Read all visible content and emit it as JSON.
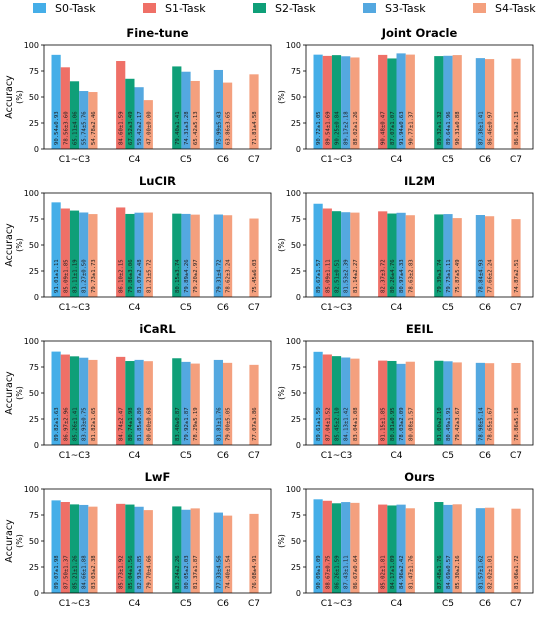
{
  "colors": [
    "#45aee8",
    "#ef7067",
    "#0f9f78",
    "#54a8e0",
    "#f4a07e"
  ],
  "legend": [
    "S0-Task",
    "S1-Task",
    "S2-Task",
    "S3-Task",
    "S4-Task"
  ],
  "ylabel": "Accuracy",
  "ylabel_unit": "(%)",
  "categories": [
    "C1~C3",
    "C4",
    "C5",
    "C6",
    "C7"
  ],
  "y_ticks": [
    "0",
    "25",
    "50",
    "75",
    "100"
  ],
  "chart_data": [
    {
      "type": "bar",
      "title": "Fine-tune",
      "ylim": [
        0,
        100
      ],
      "bars": [
        {
          "cat": "C1~C3",
          "series": "S0-Task",
          "value": 90.54,
          "label": "90.54±0.93"
        },
        {
          "cat": "C1~C3",
          "series": "S1-Task",
          "value": 78.56,
          "label": "78.56±3.60"
        },
        {
          "cat": "C1~C3",
          "series": "S2-Task",
          "value": 65.11,
          "label": "65.11±4.06"
        },
        {
          "cat": "C1~C3",
          "series": "S3-Task",
          "value": 55.74,
          "label": "55.74±5.76"
        },
        {
          "cat": "C1~C3",
          "series": "S4-Task",
          "value": 54.78,
          "label": "54.78±2.46"
        },
        {
          "cat": "C4",
          "series": "S1-Task",
          "value": 84.6,
          "label": "84.60±1.59"
        },
        {
          "cat": "C4",
          "series": "S2-Task",
          "value": 67.52,
          "label": "67.52±3.49"
        },
        {
          "cat": "C4",
          "series": "S3-Task",
          "value": 59.42,
          "label": "59.42±2.17"
        },
        {
          "cat": "C4",
          "series": "S4-Task",
          "value": 47.0,
          "label": "47.00±0.00"
        },
        {
          "cat": "C5",
          "series": "S2-Task",
          "value": 79.4,
          "label": "79.40±1.41"
        },
        {
          "cat": "C5",
          "series": "S3-Task",
          "value": 74.31,
          "label": "74.31±3.28"
        },
        {
          "cat": "C5",
          "series": "S4-Task",
          "value": 65.42,
          "label": "65.42±5.13"
        },
        {
          "cat": "C6",
          "series": "S3-Task",
          "value": 75.99,
          "label": "75.99±5.43"
        },
        {
          "cat": "C6",
          "series": "S4-Task",
          "value": 63.86,
          "label": "63.86±3.65"
        },
        {
          "cat": "C7",
          "series": "S4-Task",
          "value": 71.81,
          "label": "71.81±4.58"
        }
      ]
    },
    {
      "type": "bar",
      "title": "Joint Oracle",
      "ylim": [
        0,
        100
      ],
      "bars": [
        {
          "cat": "C1~C3",
          "series": "S0-Task",
          "value": 90.72,
          "label": "90.72±1.05"
        },
        {
          "cat": "C1~C3",
          "series": "S1-Task",
          "value": 89.54,
          "label": "89.54±1.69"
        },
        {
          "cat": "C1~C3",
          "series": "S2-Task",
          "value": 90.25,
          "label": "90.25±0.84"
        },
        {
          "cat": "C1~C3",
          "series": "S3-Task",
          "value": 89.17,
          "label": "89.17±2.18"
        },
        {
          "cat": "C1~C3",
          "series": "S4-Task",
          "value": 88.02,
          "label": "88.02±1.26"
        },
        {
          "cat": "C4",
          "series": "S1-Task",
          "value": 90.48,
          "label": "90.48±0.47"
        },
        {
          "cat": "C4",
          "series": "S2-Task",
          "value": 87.07,
          "label": "87.07±1.07"
        },
        {
          "cat": "C4",
          "series": "S3-Task",
          "value": 91.94,
          "label": "91.94±0.63"
        },
        {
          "cat": "C4",
          "series": "S4-Task",
          "value": 90.77,
          "label": "90.77±1.37"
        },
        {
          "cat": "C5",
          "series": "S2-Task",
          "value": 89.32,
          "label": "89.32±1.32"
        },
        {
          "cat": "C5",
          "series": "S3-Task",
          "value": 89.64,
          "label": "89.64±1.96"
        },
        {
          "cat": "C5",
          "series": "S4-Task",
          "value": 90.31,
          "label": "90.31±0.88"
        },
        {
          "cat": "C6",
          "series": "S3-Task",
          "value": 87.38,
          "label": "87.38±1.41"
        },
        {
          "cat": "C6",
          "series": "S4-Task",
          "value": 86.46,
          "label": "86.46±0.97"
        },
        {
          "cat": "C7",
          "series": "S4-Task",
          "value": 86.83,
          "label": "86.83±2.13"
        }
      ]
    },
    {
      "type": "bar",
      "title": "LuCIR",
      "ylim": [
        0,
        100
      ],
      "bars": [
        {
          "cat": "C1~C3",
          "series": "S0-Task",
          "value": 91.01,
          "label": "91.01±1.11"
        },
        {
          "cat": "C1~C3",
          "series": "S1-Task",
          "value": 85.09,
          "label": "85.09±1.85"
        },
        {
          "cat": "C1~C3",
          "series": "S2-Task",
          "value": 83.11,
          "label": "83.11±1.19"
        },
        {
          "cat": "C1~C3",
          "series": "S3-Task",
          "value": 81.27,
          "label": "81.27±0.50"
        },
        {
          "cat": "C1~C3",
          "series": "S4-Task",
          "value": 79.73,
          "label": "79.73±1.73"
        },
        {
          "cat": "C4",
          "series": "S1-Task",
          "value": 86.1,
          "label": "86.10±2.15"
        },
        {
          "cat": "C4",
          "series": "S2-Task",
          "value": 79.86,
          "label": "79.86±3.06"
        },
        {
          "cat": "C4",
          "series": "S3-Task",
          "value": 81.07,
          "label": "81.07±2.48"
        },
        {
          "cat": "C4",
          "series": "S4-Task",
          "value": 81.21,
          "label": "81.21±5.72"
        },
        {
          "cat": "C5",
          "series": "S2-Task",
          "value": 80.15,
          "label": "80.15±3.74"
        },
        {
          "cat": "C5",
          "series": "S3-Task",
          "value": 79.89,
          "label": "79.89±4.26"
        },
        {
          "cat": "C5",
          "series": "S4-Task",
          "value": 79.2,
          "label": "79.20±2.97"
        },
        {
          "cat": "C6",
          "series": "S3-Task",
          "value": 79.31,
          "label": "79.31±4.72"
        },
        {
          "cat": "C6",
          "series": "S4-Task",
          "value": 78.62,
          "label": "78.62±3.24"
        },
        {
          "cat": "C7",
          "series": "S4-Task",
          "value": 75.45,
          "label": "75.45±6.03"
        }
      ]
    },
    {
      "type": "bar",
      "title": "IL2M",
      "ylim": [
        0,
        100
      ],
      "bars": [
        {
          "cat": "C1~C3",
          "series": "S0-Task",
          "value": 89.67,
          "label": "89.67±1.57"
        },
        {
          "cat": "C1~C3",
          "series": "S1-Task",
          "value": 85.09,
          "label": "85.09±1.11"
        },
        {
          "cat": "C1~C3",
          "series": "S2-Task",
          "value": 82.51,
          "label": "82.51±0.51"
        },
        {
          "cat": "C1~C3",
          "series": "S3-Task",
          "value": 81.53,
          "label": "81.53±2.39"
        },
        {
          "cat": "C1~C3",
          "series": "S4-Task",
          "value": 81.14,
          "label": "81.14±2.27"
        },
        {
          "cat": "C4",
          "series": "S1-Task",
          "value": 82.37,
          "label": "82.37±3.72"
        },
        {
          "cat": "C4",
          "series": "S2-Task",
          "value": 80.26,
          "label": "80.26±4.76"
        },
        {
          "cat": "C4",
          "series": "S3-Task",
          "value": 80.97,
          "label": "80.97±4.33"
        },
        {
          "cat": "C4",
          "series": "S4-Task",
          "value": 78.63,
          "label": "78.63±2.83"
        },
        {
          "cat": "C5",
          "series": "S2-Task",
          "value": 79.39,
          "label": "79.39±3.74"
        },
        {
          "cat": "C5",
          "series": "S3-Task",
          "value": 79.73,
          "label": "79.73±1.11"
        },
        {
          "cat": "C5",
          "series": "S4-Task",
          "value": 75.87,
          "label": "75.87±5.49"
        },
        {
          "cat": "C6",
          "series": "S3-Task",
          "value": 78.84,
          "label": "78.84±4.93"
        },
        {
          "cat": "C6",
          "series": "S4-Task",
          "value": 77.66,
          "label": "77.66±2.24"
        },
        {
          "cat": "C7",
          "series": "S4-Task",
          "value": 74.87,
          "label": "74.87±2.51"
        }
      ]
    },
    {
      "type": "bar",
      "title": "iCaRL",
      "ylim": [
        0,
        100
      ],
      "bars": [
        {
          "cat": "C1~C3",
          "series": "S0-Task",
          "value": 89.82,
          "label": "89.82±1.63"
        },
        {
          "cat": "C1~C3",
          "series": "S1-Task",
          "value": 86.97,
          "label": "86.97±2.96"
        },
        {
          "cat": "C1~C3",
          "series": "S2-Task",
          "value": 85.26,
          "label": "85.26±1.41"
        },
        {
          "cat": "C1~C3",
          "series": "S3-Task",
          "value": 83.93,
          "label": "83.93±0.75"
        },
        {
          "cat": "C1~C3",
          "series": "S4-Task",
          "value": 81.82,
          "label": "81.82±1.65"
        },
        {
          "cat": "C4",
          "series": "S1-Task",
          "value": 84.74,
          "label": "84.74±2.47"
        },
        {
          "cat": "C4",
          "series": "S2-Task",
          "value": 80.74,
          "label": "80.74±1.98"
        },
        {
          "cat": "C4",
          "series": "S3-Task",
          "value": 81.85,
          "label": "81.85±0.80"
        },
        {
          "cat": "C4",
          "series": "S4-Task",
          "value": 80.6,
          "label": "80.60±0.68"
        },
        {
          "cat": "C5",
          "series": "S2-Task",
          "value": 83.4,
          "label": "83.40±0.87"
        },
        {
          "cat": "C5",
          "series": "S3-Task",
          "value": 79.92,
          "label": "79.92±1.87"
        },
        {
          "cat": "C5",
          "series": "S4-Task",
          "value": 78.29,
          "label": "78.29±5.19"
        },
        {
          "cat": "C6",
          "series": "S3-Task",
          "value": 81.81,
          "label": "81.81±1.76"
        },
        {
          "cat": "C6",
          "series": "S4-Task",
          "value": 79.0,
          "label": "79.00±5.05"
        },
        {
          "cat": "C7",
          "series": "S4-Task",
          "value": 77.07,
          "label": "77.07±3.86"
        }
      ]
    },
    {
      "type": "bar",
      "title": "EEIL",
      "ylim": [
        0,
        100
      ],
      "bars": [
        {
          "cat": "C1~C3",
          "series": "S0-Task",
          "value": 89.61,
          "label": "89.61±1.50"
        },
        {
          "cat": "C1~C3",
          "series": "S1-Task",
          "value": 87.04,
          "label": "87.04±1.52"
        },
        {
          "cat": "C1~C3",
          "series": "S2-Task",
          "value": 85.45,
          "label": "85.45±2.10"
        },
        {
          "cat": "C1~C3",
          "series": "S3-Task",
          "value": 84.13,
          "label": "84.13±1.42"
        },
        {
          "cat": "C1~C3",
          "series": "S4-Task",
          "value": 83.04,
          "label": "83.04±1.08"
        },
        {
          "cat": "C4",
          "series": "S1-Task",
          "value": 81.15,
          "label": "81.15±1.85"
        },
        {
          "cat": "C4",
          "series": "S2-Task",
          "value": 80.81,
          "label": "80.81±0.95"
        },
        {
          "cat": "C4",
          "series": "S3-Task",
          "value": 78.03,
          "label": "78.03±2.09"
        },
        {
          "cat": "C4",
          "series": "S4-Task",
          "value": 80.08,
          "label": "80.08±1.57"
        },
        {
          "cat": "C5",
          "series": "S2-Task",
          "value": 81.0,
          "label": "81.00±2.10"
        },
        {
          "cat": "C5",
          "series": "S3-Task",
          "value": 80.49,
          "label": "80.49±1.91"
        },
        {
          "cat": "C5",
          "series": "S4-Task",
          "value": 79.42,
          "label": "79.42±3.67"
        },
        {
          "cat": "C6",
          "series": "S3-Task",
          "value": 78.98,
          "label": "78.98±5.14"
        },
        {
          "cat": "C6",
          "series": "S4-Task",
          "value": 78.65,
          "label": "78.65±1.67"
        },
        {
          "cat": "C7",
          "series": "S4-Task",
          "value": 78.86,
          "label": "78.86±5.18"
        }
      ]
    },
    {
      "type": "bar",
      "title": "LwF",
      "ylim": [
        0,
        100
      ],
      "bars": [
        {
          "cat": "C1~C3",
          "series": "S0-Task",
          "value": 89.07,
          "label": "89.07±1.98"
        },
        {
          "cat": "C1~C3",
          "series": "S1-Task",
          "value": 87.5,
          "label": "87.50±1.37"
        },
        {
          "cat": "C1~C3",
          "series": "S2-Task",
          "value": 85.21,
          "label": "85.21±1.26"
        },
        {
          "cat": "C1~C3",
          "series": "S3-Task",
          "value": 84.66,
          "label": "84.66±1.88"
        },
        {
          "cat": "C1~C3",
          "series": "S4-Task",
          "value": 83.03,
          "label": "83.03±2.38"
        },
        {
          "cat": "C4",
          "series": "S1-Task",
          "value": 85.73,
          "label": "85.73±1.92"
        },
        {
          "cat": "C4",
          "series": "S2-Task",
          "value": 85.04,
          "label": "85.04±1.56"
        },
        {
          "cat": "C4",
          "series": "S3-Task",
          "value": 82.93,
          "label": "82.93±1.85"
        },
        {
          "cat": "C4",
          "series": "S4-Task",
          "value": 79.7,
          "label": "79.70±4.66"
        },
        {
          "cat": "C5",
          "series": "S2-Task",
          "value": 83.24,
          "label": "83.24±2.26"
        },
        {
          "cat": "C5",
          "series": "S3-Task",
          "value": 80.05,
          "label": "80.05±2.03"
        },
        {
          "cat": "C5",
          "series": "S4-Task",
          "value": 81.37,
          "label": "81.37±1.87"
        },
        {
          "cat": "C6",
          "series": "S3-Task",
          "value": 77.33,
          "label": "77.33±4.56"
        },
        {
          "cat": "C6",
          "series": "S4-Task",
          "value": 74.4,
          "label": "74.40±1.54"
        },
        {
          "cat": "C7",
          "series": "S4-Task",
          "value": 76.08,
          "label": "76.08±4.91"
        }
      ]
    },
    {
      "type": "bar",
      "title": "Ours",
      "ylim": [
        0,
        100
      ],
      "bars": [
        {
          "cat": "C1~C3",
          "series": "S0-Task",
          "value": 90.09,
          "label": "90.09±1.09"
        },
        {
          "cat": "C1~C3",
          "series": "S1-Task",
          "value": 88.67,
          "label": "88.67±0.75"
        },
        {
          "cat": "C1~C3",
          "series": "S2-Task",
          "value": 86.26,
          "label": "86.26±1.59"
        },
        {
          "cat": "C1~C3",
          "series": "S3-Task",
          "value": 87.43,
          "label": "87.43±1.11"
        },
        {
          "cat": "C1~C3",
          "series": "S4-Task",
          "value": 86.67,
          "label": "86.67±0.64"
        },
        {
          "cat": "C4",
          "series": "S1-Task",
          "value": 85.02,
          "label": "85.02±1.81"
        },
        {
          "cat": "C4",
          "series": "S2-Task",
          "value": 84.17,
          "label": "84.17±1.09"
        },
        {
          "cat": "C4",
          "series": "S3-Task",
          "value": 84.96,
          "label": "84.96±2.42"
        },
        {
          "cat": "C4",
          "series": "S4-Task",
          "value": 81.47,
          "label": "81.47±1.76"
        },
        {
          "cat": "C5",
          "series": "S2-Task",
          "value": 87.48,
          "label": "87.48±1.76"
        },
        {
          "cat": "C5",
          "series": "S3-Task",
          "value": 84.69,
          "label": "84.69±0.57"
        },
        {
          "cat": "C5",
          "series": "S4-Task",
          "value": 85.3,
          "label": "85.30±2.16"
        },
        {
          "cat": "C6",
          "series": "S3-Task",
          "value": 81.57,
          "label": "81.57±1.62"
        },
        {
          "cat": "C6",
          "series": "S4-Task",
          "value": 82.02,
          "label": "82.02±1.01"
        },
        {
          "cat": "C7",
          "series": "S4-Task",
          "value": 81.06,
          "label": "81.06±1.72"
        }
      ]
    }
  ]
}
